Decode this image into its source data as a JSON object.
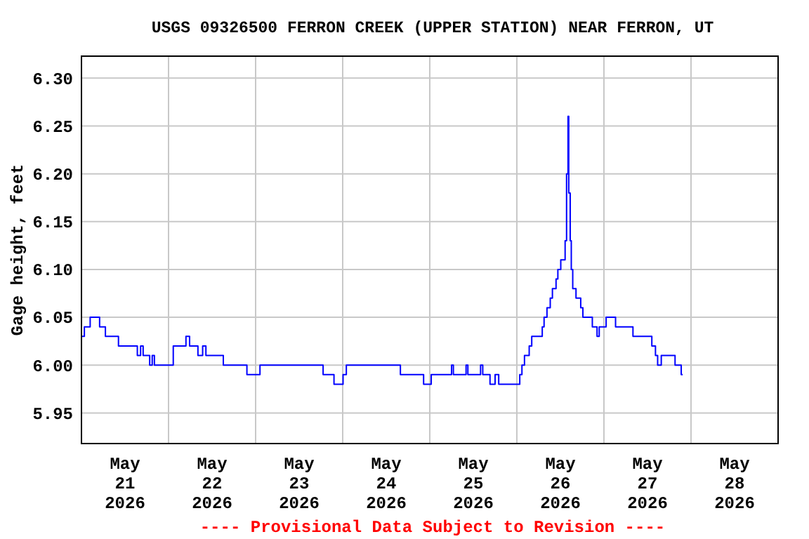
{
  "chart_data": {
    "type": "step",
    "title": "USGS 09326500 FERRON CREEK (UPPER STATION) NEAR FERRON, UT",
    "ylabel": "Gage height, feet",
    "annotations": [
      "---- Provisional Data Subject to Revision ----"
    ],
    "xlim": [
      "2026-05-21T00:00",
      "2026-05-29T00:00"
    ],
    "xticks": [
      {
        "value": "2026-05-21T12:00",
        "label": "May\n21\n2026"
      },
      {
        "value": "2026-05-22T00:00",
        "label": null
      },
      {
        "value": "2026-05-22T12:00",
        "label": "May\n22\n2026"
      },
      {
        "value": "2026-05-23T00:00",
        "label": null
      },
      {
        "value": "2026-05-23T12:00",
        "label": "May\n23\n2026"
      },
      {
        "value": "2026-05-24T00:00",
        "label": null
      },
      {
        "value": "2026-05-24T12:00",
        "label": "May\n24\n2026"
      },
      {
        "value": "2026-05-25T00:00",
        "label": null
      },
      {
        "value": "2026-05-25T12:00",
        "label": "May\n25\n2026"
      },
      {
        "value": "2026-05-26T00:00",
        "label": null
      },
      {
        "value": "2026-05-26T12:00",
        "label": "May\n26\n2026"
      },
      {
        "value": "2026-05-27T00:00",
        "label": null
      },
      {
        "value": "2026-05-27T12:00",
        "label": "May\n27\n2026"
      },
      {
        "value": "2026-05-28T00:00",
        "label": null
      },
      {
        "value": "2026-05-28T12:00",
        "label": "May\n28\n2026"
      }
    ],
    "ylim": [
      5.918,
      6.323
    ],
    "yticks": [
      {
        "value": 5.95,
        "label": "5.95"
      },
      {
        "value": 6.0,
        "label": "6.00"
      },
      {
        "value": 6.05,
        "label": "6.05"
      },
      {
        "value": 6.1,
        "label": "6.10"
      },
      {
        "value": 6.15,
        "label": "6.15"
      },
      {
        "value": 6.2,
        "label": "6.20"
      },
      {
        "value": 6.25,
        "label": "6.25"
      },
      {
        "value": 6.3,
        "label": "6.30"
      }
    ],
    "grid": "x_at_day_y_at_ticks",
    "series": [
      {
        "color": "#0000ff",
        "x": [
          "2026-05-21T00:06",
          "2026-05-21T00:48",
          "2026-05-21T02:24",
          "2026-05-21T05:00",
          "2026-05-21T06:36",
          "2026-05-21T10:12",
          "2026-05-21T15:24",
          "2026-05-21T16:18",
          "2026-05-21T17:00",
          "2026-05-21T18:48",
          "2026-05-21T19:30",
          "2026-05-21T20:06",
          "2026-05-22T01:18",
          "2026-05-22T04:48",
          "2026-05-22T05:48",
          "2026-05-22T08:06",
          "2026-05-22T09:24",
          "2026-05-22T10:18",
          "2026-05-22T15:06",
          "2026-05-22T21:36",
          "2026-05-23T01:12",
          "2026-05-23T18:36",
          "2026-05-23T21:36",
          "2026-05-24T00:06",
          "2026-05-24T01:00",
          "2026-05-24T15:54",
          "2026-05-24T22:18",
          "2026-05-25T00:24",
          "2026-05-25T06:00",
          "2026-05-25T06:30",
          "2026-05-25T10:00",
          "2026-05-25T10:30",
          "2026-05-25T14:00",
          "2026-05-25T14:36",
          "2026-05-25T16:36",
          "2026-05-25T18:00",
          "2026-05-25T19:00",
          "2026-05-26T00:48",
          "2026-05-26T01:24",
          "2026-05-26T02:06",
          "2026-05-26T03:24",
          "2026-05-26T04:06",
          "2026-05-26T07:00",
          "2026-05-26T07:30",
          "2026-05-26T08:18",
          "2026-05-26T09:12",
          "2026-05-26T09:48",
          "2026-05-26T10:48",
          "2026-05-26T11:18",
          "2026-05-26T12:06",
          "2026-05-26T13:18",
          "2026-05-26T13:42",
          "2026-05-26T14:06",
          "2026-05-26T14:18",
          "2026-05-26T14:42",
          "2026-05-26T15:00",
          "2026-05-26T15:24",
          "2026-05-26T16:18",
          "2026-05-26T17:36",
          "2026-05-26T18:12",
          "2026-05-26T20:48",
          "2026-05-26T22:06",
          "2026-05-26T22:42",
          "2026-05-27T00:36",
          "2026-05-27T03:12",
          "2026-05-27T08:00",
          "2026-05-27T13:12",
          "2026-05-27T14:12",
          "2026-05-27T14:48",
          "2026-05-27T15:48",
          "2026-05-27T19:36",
          "2026-05-27T21:18",
          "2026-05-27T21:42"
        ],
        "values": [
          6.03,
          6.04,
          6.05,
          6.04,
          6.03,
          6.02,
          6.01,
          6.02,
          6.01,
          6.0,
          6.01,
          6.0,
          6.02,
          6.03,
          6.02,
          6.01,
          6.02,
          6.01,
          6.0,
          5.99,
          6.0,
          5.99,
          5.98,
          5.99,
          6.0,
          5.99,
          5.98,
          5.99,
          6.0,
          5.99,
          6.0,
          5.99,
          6.0,
          5.99,
          5.98,
          5.99,
          5.98,
          5.99,
          6.0,
          6.01,
          6.02,
          6.03,
          6.04,
          6.05,
          6.06,
          6.07,
          6.08,
          6.09,
          6.1,
          6.11,
          6.13,
          6.2,
          6.26,
          6.18,
          6.13,
          6.1,
          6.08,
          6.07,
          6.06,
          6.05,
          6.04,
          6.03,
          6.04,
          6.05,
          6.04,
          6.03,
          6.02,
          6.01,
          6.0,
          6.01,
          6.0,
          5.99,
          5.99
        ]
      }
    ]
  }
}
